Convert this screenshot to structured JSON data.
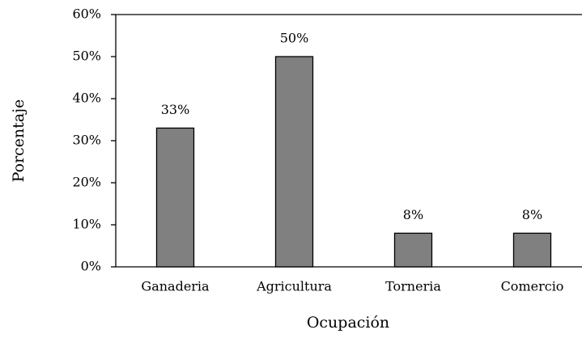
{
  "chart_data": {
    "type": "bar",
    "x_label": "Ocupación",
    "y_label": "Porcentaje",
    "categories": [
      "Ganaderia",
      "Agricultura",
      "Torneria",
      "Comercio"
    ],
    "values": [
      33,
      50,
      8,
      8
    ],
    "value_labels": [
      "33%",
      "50%",
      "8%",
      "8%"
    ],
    "color": "#808080",
    "ylim": [
      0,
      60
    ],
    "yticks": [
      {
        "value": 0,
        "label": "0%"
      },
      {
        "value": 10,
        "label": "10%"
      },
      {
        "value": 20,
        "label": "20%"
      },
      {
        "value": 30,
        "label": "30%"
      },
      {
        "value": 40,
        "label": "40%"
      },
      {
        "value": 50,
        "label": "50%"
      },
      {
        "value": 60,
        "label": "60%"
      }
    ],
    "grid": false
  }
}
